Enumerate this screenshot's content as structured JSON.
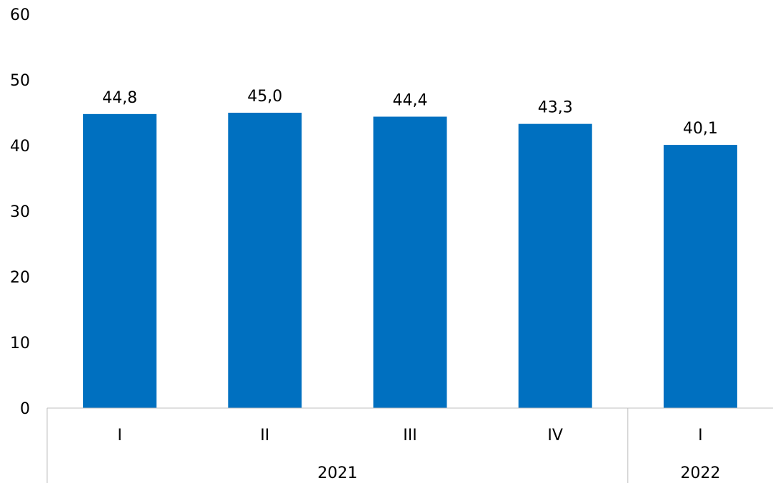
{
  "chart_data": {
    "type": "bar",
    "categories": [
      "I",
      "II",
      "III",
      "IV",
      "I"
    ],
    "groups": [
      {
        "label": "2021",
        "count": 4
      },
      {
        "label": "2022",
        "count": 1
      }
    ],
    "values": [
      44.8,
      45.0,
      44.4,
      43.3,
      40.1
    ],
    "data_labels": [
      "44,8",
      "45,0",
      "44,4",
      "43,3",
      "40,1"
    ],
    "ylim": [
      0,
      60
    ],
    "yticks": [
      "0",
      "10",
      "20",
      "30",
      "40",
      "50",
      "60"
    ],
    "bar_color": "#0070C0",
    "grid": false,
    "title": "",
    "xlabel": "",
    "ylabel": ""
  }
}
